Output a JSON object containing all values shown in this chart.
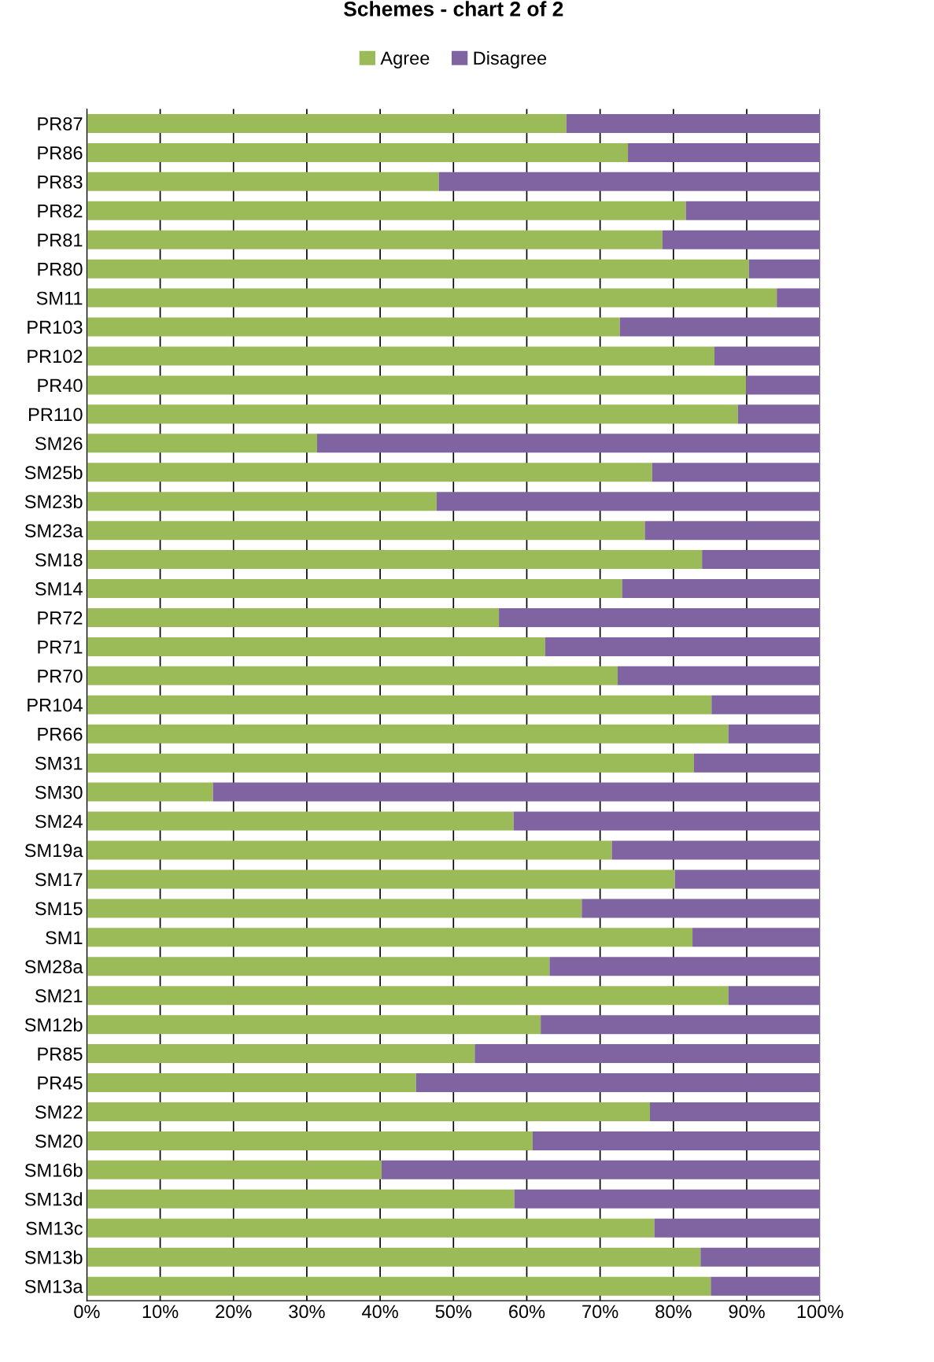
{
  "chart_data": {
    "type": "bar",
    "orientation": "horizontal",
    "stacked": true,
    "title": "Schemes - chart 2 of 2",
    "categories": [
      "PR87",
      "PR86",
      "PR83",
      "PR82",
      "PR81",
      "PR80",
      "SM11",
      "PR103",
      "PR102",
      "PR40",
      "PR110",
      "SM26",
      "SM25b",
      "SM23b",
      "SM23a",
      "SM18",
      "SM14",
      "PR72",
      "PR71",
      "PR70",
      "PR104",
      "PR66",
      "SM31",
      "SM30",
      "SM24",
      "SM19a",
      "SM17",
      "SM15",
      "SM1",
      "SM28a",
      "SM21",
      "SM12b",
      "PR85",
      "PR45",
      "SM22",
      "SM20",
      "SM16b",
      "SM13d",
      "SM13c",
      "SM13b",
      "SM13a"
    ],
    "series": [
      {
        "name": "Agree",
        "color": "#9bbb59",
        "values": [
          65.4,
          73.8,
          48.0,
          81.7,
          78.5,
          90.3,
          94.1,
          72.7,
          85.6,
          89.9,
          88.8,
          31.4,
          77.1,
          47.7,
          76.1,
          83.9,
          73.0,
          56.2,
          62.5,
          72.4,
          85.2,
          87.5,
          82.8,
          17.2,
          58.2,
          71.6,
          80.2,
          67.5,
          82.6,
          63.1,
          87.5,
          61.9,
          52.9,
          44.9,
          76.8,
          60.8,
          40.2,
          58.3,
          77.4,
          83.7,
          85.1
        ]
      },
      {
        "name": "Disagree",
        "color": "#8064a2",
        "values": [
          34.6,
          26.2,
          52.0,
          18.3,
          21.5,
          9.7,
          5.9,
          27.3,
          14.4,
          10.1,
          11.2,
          68.6,
          22.9,
          52.3,
          23.9,
          16.1,
          27.0,
          43.8,
          37.5,
          27.6,
          14.8,
          12.5,
          17.2,
          82.8,
          41.8,
          28.4,
          19.8,
          32.5,
          17.4,
          36.9,
          12.5,
          38.1,
          47.1,
          55.1,
          23.2,
          39.2,
          59.8,
          41.7,
          22.6,
          16.3,
          14.9
        ]
      }
    ],
    "xlim": [
      0,
      100
    ],
    "xticks": [
      {
        "value": 0,
        "label": "0%"
      },
      {
        "value": 10,
        "label": "10%"
      },
      {
        "value": 20,
        "label": "20%"
      },
      {
        "value": 30,
        "label": "30%"
      },
      {
        "value": 40,
        "label": "40%"
      },
      {
        "value": 50,
        "label": "50%"
      },
      {
        "value": 60,
        "label": "60%"
      },
      {
        "value": 70,
        "label": "70%"
      },
      {
        "value": 80,
        "label": "80%"
      },
      {
        "value": 90,
        "label": "90%"
      },
      {
        "value": 100,
        "label": "100%"
      }
    ],
    "grid": "x",
    "legend": "top"
  }
}
